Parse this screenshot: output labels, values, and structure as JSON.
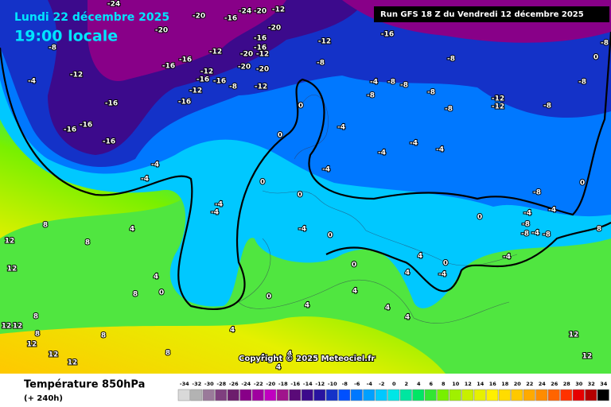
{
  "header": {
    "date": "Lundi 22 décembre 2025",
    "time": "19:00 locale",
    "run": "Run GFS 18 Z du Vendredi 12 décembre 2025"
  },
  "copyright": "Copyright © 2025 Meteociel.fr",
  "footer": {
    "title": "Température 850hPa",
    "lead": "(+ 240h)"
  },
  "legend": {
    "ticks": [
      -34,
      -32,
      -30,
      -28,
      -26,
      -24,
      -22,
      -20,
      -18,
      -16,
      -14,
      -12,
      -10,
      -8,
      -6,
      -4,
      -2,
      0,
      2,
      4,
      6,
      8,
      10,
      12,
      14,
      16,
      18,
      20,
      22,
      24,
      26,
      28,
      30,
      32,
      34
    ],
    "colors": [
      "#d9d9d9",
      "#b3b3b3",
      "#9a7a9a",
      "#7f3f7f",
      "#6d1d6d",
      "#880088",
      "#a000a0",
      "#c000c0",
      "#a0148c",
      "#5a0a78",
      "#3c0a8c",
      "#2814a0",
      "#1432c8",
      "#0050ff",
      "#0078ff",
      "#00a0ff",
      "#00c8ff",
      "#00e6e6",
      "#00e6a0",
      "#00e664",
      "#32e632",
      "#78f000",
      "#a0f000",
      "#c8f000",
      "#e6f000",
      "#fff000",
      "#ffdc00",
      "#ffc800",
      "#ffaa00",
      "#ff8c00",
      "#ff6400",
      "#ff3200",
      "#e60000",
      "#b40000",
      "#000000"
    ]
  },
  "map_labels": [
    -24,
    -20,
    -16,
    -24,
    -20,
    -12,
    -20,
    -20,
    -16,
    -12,
    -16,
    -16,
    -20,
    -12,
    -8,
    -12,
    -16,
    -16,
    -20,
    -8,
    -8,
    -8,
    0,
    -4,
    -12,
    -12,
    -16,
    -16,
    -8,
    -20,
    -12,
    -12,
    -16,
    -16,
    -4,
    -8,
    -8,
    -8,
    -8,
    -12,
    -12,
    -8,
    -8,
    0,
    -8,
    -16,
    -16,
    -16,
    -4,
    0,
    -4,
    -4,
    -4,
    -4,
    -4,
    0,
    0,
    -4,
    -4,
    -4,
    -8,
    0,
    0,
    -4,
    -4,
    -8,
    -8,
    -4,
    -8,
    -4,
    -4,
    0,
    8,
    8,
    12,
    12,
    4,
    4,
    0,
    0,
    4,
    4,
    4,
    8,
    8,
    4,
    4,
    4,
    4,
    12,
    12,
    8,
    8,
    12,
    12,
    12,
    8,
    8,
    12,
    12,
    4,
    4,
    0,
    -4,
    0,
    4
  ]
}
